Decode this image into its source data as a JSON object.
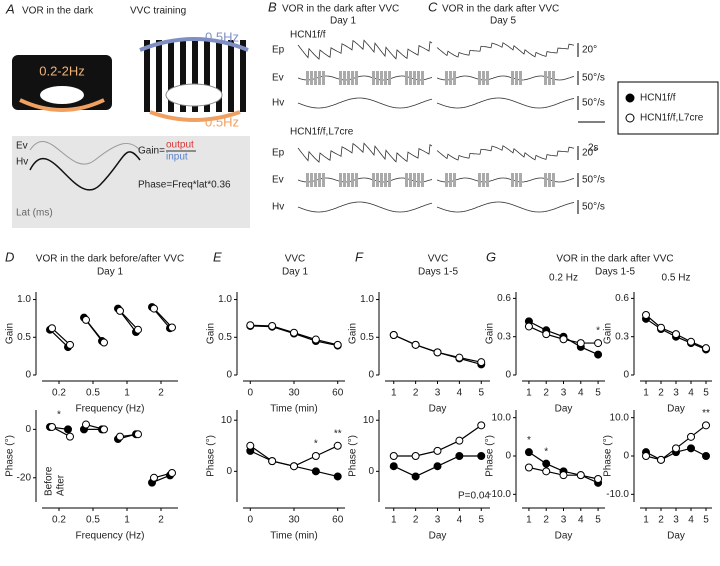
{
  "panel_a": {
    "letter": "A",
    "title_left": "VOR in the dark",
    "title_right": "VVC training",
    "freq_left": "0.2-2Hz",
    "freq_top": "0.5Hz",
    "freq_bottom": "0.5Hz",
    "trace_ev": "Ev",
    "trace_hv": "Hv",
    "gain": "Gain=",
    "output": "output",
    "input": "input",
    "phase": "Phase=Freq*lat*0.36",
    "lat": "Lat (ms)"
  },
  "panel_b": {
    "letter": "B",
    "title": "VOR in the dark after VVC",
    "subtitle": "Day 1",
    "genotype_top": "HCN1f/f",
    "genotype_bottom": "HCN1f/f,L7cre",
    "rows": [
      "Ep",
      "Ev",
      "Hv",
      "Ep",
      "Ev",
      "Hv"
    ]
  },
  "panel_c": {
    "letter": "C",
    "title": "VOR in the dark after VVC",
    "subtitle": "Day 5",
    "scale_labels": [
      "20°",
      "50°/s",
      "50°/s",
      "20°",
      "50°/s",
      "50°/s"
    ],
    "time_scale": "2s"
  },
  "panels": [
    {
      "letter": "D",
      "title": "VOR in the dark before/after VVC",
      "subtitle": "Day 1"
    },
    {
      "letter": "E",
      "title": "VVC",
      "subtitle": "Day 1"
    },
    {
      "letter": "F",
      "title": "VVC",
      "subtitle": "Days 1-5"
    },
    {
      "letter": "G",
      "title": "VOR in the dark after VVC",
      "subtitle": "Days 1-5"
    }
  ],
  "chart_data": [
    {
      "type": "paired",
      "ylabel": "Gain",
      "xlabel": "Frequency (Hz)",
      "categories": [
        "0.2",
        "0.5",
        "1",
        "2"
      ],
      "ylim": [
        0,
        1.1
      ],
      "yticks": [
        0,
        0.5,
        {
          "value": 1,
          "label": "1.0"
        }
      ],
      "series": [
        {
          "name": "HCN1f/f",
          "color": "#000000",
          "fill": "#000000",
          "values": [
            0.6,
            0.76,
            0.88,
            0.9
          ],
          "values_after": [
            0.37,
            0.45,
            0.57,
            0.62
          ]
        },
        {
          "name": "HCN1f/f,L7cre",
          "color": "#000000",
          "fill": "#ffffff",
          "values": [
            0.62,
            0.73,
            0.85,
            0.88
          ],
          "values_after": [
            0.4,
            0.43,
            0.6,
            0.63
          ]
        }
      ]
    },
    {
      "type": "paired",
      "ylabel": "Phase (°)",
      "xlabel": "Frequency (Hz)",
      "categories": [
        "0.2",
        "0.5",
        "1",
        "2"
      ],
      "ylim": [
        -30,
        8
      ],
      "yticks": [
        -20,
        0
      ],
      "notes": [
        "Before",
        "After"
      ],
      "annotations": [
        {
          "text": "*",
          "x": "0.2"
        }
      ],
      "series": [
        {
          "name": "HCN1f/f",
          "color": "#000000",
          "fill": "#000000",
          "values": [
            1,
            0,
            -4,
            -22
          ],
          "values_after": [
            0,
            0,
            -2,
            -19
          ]
        },
        {
          "name": "HCN1f/f,L7cre",
          "color": "#000000",
          "fill": "#ffffff",
          "values": [
            1,
            2,
            -3,
            -20
          ],
          "values_after": [
            -3,
            0,
            -2,
            -18
          ]
        }
      ]
    },
    {
      "type": "line",
      "ylabel": "Gain",
      "xlabel": "Time (min)",
      "x": [
        0,
        15,
        30,
        45,
        60
      ],
      "xlim": [
        -5,
        65
      ],
      "xticks": [
        0,
        30,
        60
      ],
      "ylim": [
        0,
        1.1
      ],
      "yticks": [
        0,
        0.5,
        {
          "value": 1,
          "label": "1.0"
        }
      ],
      "series": [
        {
          "name": "HCN1f/f",
          "color": "#000000",
          "fill": "#000000",
          "values": [
            0.65,
            0.64,
            0.55,
            0.45,
            0.39
          ]
        },
        {
          "name": "HCN1f/f,L7cre",
          "color": "#000000",
          "fill": "#ffffff",
          "values": [
            0.66,
            0.65,
            0.56,
            0.47,
            0.4
          ]
        }
      ]
    },
    {
      "type": "line",
      "ylabel": "Phase (°)",
      "xlabel": "Time (min)",
      "x": [
        0,
        15,
        30,
        45,
        60
      ],
      "xlim": [
        -5,
        65
      ],
      "xticks": [
        0,
        30,
        60
      ],
      "ylim": [
        -6,
        12
      ],
      "yticks": [
        0,
        10
      ],
      "annotations": [
        {
          "text": "*",
          "x": 45
        },
        {
          "text": "**",
          "x": 60
        }
      ],
      "series": [
        {
          "name": "HCN1f/f",
          "color": "#000000",
          "fill": "#000000",
          "values": [
            4,
            2,
            1,
            0,
            -1
          ]
        },
        {
          "name": "HCN1f/f,L7cre",
          "color": "#000000",
          "fill": "#ffffff",
          "values": [
            5,
            2,
            1,
            3,
            5
          ]
        }
      ]
    },
    {
      "type": "line",
      "ylabel": "Gain",
      "xlabel": "Day",
      "x": [
        1,
        2,
        3,
        4,
        5
      ],
      "xlim": [
        0.6,
        5.4
      ],
      "xticks": [
        1,
        2,
        3,
        4,
        5
      ],
      "ylim": [
        0,
        1.1
      ],
      "yticks": [
        0,
        0.5,
        {
          "value": 1,
          "label": "1.0"
        }
      ],
      "series": [
        {
          "name": "HCN1f/f",
          "color": "#000000",
          "fill": "#000000",
          "values": [
            0.53,
            0.4,
            0.3,
            0.22,
            0.14
          ]
        },
        {
          "name": "HCN1f/f,L7cre",
          "color": "#000000",
          "fill": "#ffffff",
          "values": [
            0.53,
            0.4,
            0.3,
            0.23,
            0.17
          ]
        }
      ]
    },
    {
      "type": "line",
      "ylabel": "Phase (°)",
      "xlabel": "Day",
      "x": [
        1,
        2,
        3,
        4,
        5
      ],
      "xlim": [
        0.6,
        5.4
      ],
      "xticks": [
        1,
        2,
        3,
        4,
        5
      ],
      "ylim": [
        -6,
        12
      ],
      "yticks": [
        0,
        10
      ],
      "annotations": [
        {
          "text": "P=0.04"
        }
      ],
      "series": [
        {
          "name": "HCN1f/f",
          "color": "#000000",
          "fill": "#000000",
          "values": [
            1,
            -1,
            1,
            3,
            3
          ]
        },
        {
          "name": "HCN1f/f,L7cre",
          "color": "#000000",
          "fill": "#ffffff",
          "values": [
            3,
            3,
            4,
            6,
            9
          ]
        }
      ]
    },
    {
      "type": "line",
      "title": "0.2 Hz",
      "ylabel": "Gain",
      "xlabel": "Day",
      "x": [
        1,
        2,
        3,
        4,
        5
      ],
      "xlim": [
        0.6,
        5.4
      ],
      "xticks": [
        1,
        2,
        3,
        4,
        5
      ],
      "ylim": [
        0,
        0.65
      ],
      "yticks": [
        0,
        0.3,
        0.6
      ],
      "annotations": [
        {
          "text": "*",
          "x": 5
        }
      ],
      "series": [
        {
          "name": "HCN1f/f",
          "color": "#000000",
          "fill": "#000000",
          "values": [
            0.42,
            0.35,
            0.3,
            0.22,
            0.16
          ]
        },
        {
          "name": "HCN1f/f,L7cre",
          "color": "#000000",
          "fill": "#ffffff",
          "values": [
            0.38,
            0.32,
            0.28,
            0.25,
            0.25
          ]
        }
      ]
    },
    {
      "type": "line",
      "ylabel": "Phase (°)",
      "xlabel": "Day",
      "x": [
        1,
        2,
        3,
        4,
        5
      ],
      "xlim": [
        0.6,
        5.4
      ],
      "xticks": [
        1,
        2,
        3,
        4,
        5
      ],
      "ylim": [
        -12,
        12
      ],
      "yticks": [
        {
          "value": -10,
          "label": "-10.0"
        },
        0,
        {
          "value": 10,
          "label": "10.0"
        }
      ],
      "annotations": [
        {
          "text": "*",
          "x": 1
        },
        {
          "text": "*",
          "x": 2
        }
      ],
      "series": [
        {
          "name": "HCN1f/f",
          "color": "#000000",
          "fill": "#000000",
          "values": [
            1,
            -2,
            -4,
            -5,
            -7
          ]
        },
        {
          "name": "HCN1f/f,L7cre",
          "color": "#000000",
          "fill": "#ffffff",
          "values": [
            -3,
            -4,
            -5,
            -5,
            -6
          ]
        }
      ]
    },
    {
      "type": "line",
      "title": "0.5 Hz",
      "ylabel": "Gain",
      "xlabel": "Day",
      "x": [
        1,
        2,
        3,
        4,
        5
      ],
      "xlim": [
        0.6,
        5.4
      ],
      "xticks": [
        1,
        2,
        3,
        4,
        5
      ],
      "ylim": [
        0,
        0.65
      ],
      "yticks": [
        0,
        0.3,
        0.6
      ],
      "series": [
        {
          "name": "HCN1f/f",
          "color": "#000000",
          "fill": "#000000",
          "values": [
            0.44,
            0.36,
            0.3,
            0.25,
            0.2
          ]
        },
        {
          "name": "HCN1f/f,L7cre",
          "color": "#000000",
          "fill": "#ffffff",
          "values": [
            0.47,
            0.37,
            0.32,
            0.26,
            0.21
          ]
        }
      ]
    },
    {
      "type": "line",
      "ylabel": "Phase (°)",
      "xlabel": "Day",
      "x": [
        1,
        2,
        3,
        4,
        5
      ],
      "xlim": [
        0.6,
        5.4
      ],
      "xticks": [
        1,
        2,
        3,
        4,
        5
      ],
      "ylim": [
        -12,
        12
      ],
      "yticks": [
        {
          "value": -10,
          "label": "-10.0"
        },
        0,
        {
          "value": 10,
          "label": "10.0"
        }
      ],
      "annotations": [
        {
          "text": "**",
          "x": 5
        }
      ],
      "series": [
        {
          "name": "HCN1f/f",
          "color": "#000000",
          "fill": "#000000",
          "values": [
            1,
            -1,
            1,
            2,
            0
          ]
        },
        {
          "name": "HCN1f/f,L7cre",
          "color": "#000000",
          "fill": "#ffffff",
          "values": [
            0,
            -1,
            2,
            5,
            8
          ]
        }
      ]
    }
  ]
}
